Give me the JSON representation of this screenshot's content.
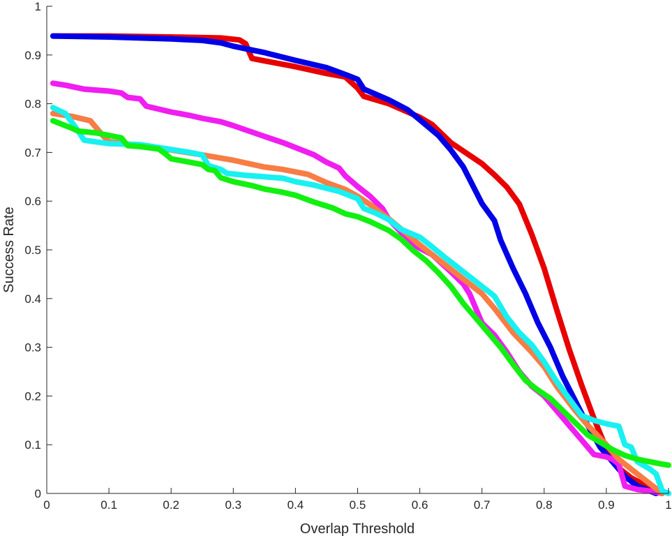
{
  "chart_data": {
    "type": "line",
    "title": "",
    "xlabel": "Overlap Threshold",
    "ylabel": "Success Rate",
    "xlim": [
      0,
      1
    ],
    "ylim": [
      0,
      1
    ],
    "grid": false,
    "legend": "none",
    "x_ticks": [
      "0",
      "0.1",
      "0.2",
      "0.3",
      "0.4",
      "0.5",
      "0.6",
      "0.7",
      "0.8",
      "0.9",
      "1"
    ],
    "y_ticks": [
      "0",
      "0.1",
      "0.2",
      "0.3",
      "0.4",
      "0.5",
      "0.6",
      "0.7",
      "0.8",
      "0.9",
      "1"
    ],
    "series": [
      {
        "color": "#e80000",
        "points": [
          [
            0.01,
            0.939
          ],
          [
            0.1,
            0.939
          ],
          [
            0.2,
            0.937
          ],
          [
            0.28,
            0.935
          ],
          [
            0.31,
            0.931
          ],
          [
            0.32,
            0.923
          ],
          [
            0.33,
            0.893
          ],
          [
            0.35,
            0.888
          ],
          [
            0.4,
            0.876
          ],
          [
            0.45,
            0.862
          ],
          [
            0.48,
            0.855
          ],
          [
            0.5,
            0.832
          ],
          [
            0.51,
            0.815
          ],
          [
            0.55,
            0.8
          ],
          [
            0.6,
            0.772
          ],
          [
            0.62,
            0.757
          ],
          [
            0.65,
            0.72
          ],
          [
            0.7,
            0.677
          ],
          [
            0.72,
            0.654
          ],
          [
            0.74,
            0.629
          ],
          [
            0.76,
            0.594
          ],
          [
            0.78,
            0.532
          ],
          [
            0.8,
            0.462
          ],
          [
            0.82,
            0.378
          ],
          [
            0.84,
            0.297
          ],
          [
            0.86,
            0.223
          ],
          [
            0.88,
            0.154
          ],
          [
            0.9,
            0.092
          ],
          [
            0.92,
            0.052
          ],
          [
            0.94,
            0.032
          ],
          [
            0.96,
            0.018
          ],
          [
            0.98,
            0.004
          ],
          [
            0.99,
            0.0
          ]
        ]
      },
      {
        "color": "#0000e6",
        "points": [
          [
            0.01,
            0.939
          ],
          [
            0.1,
            0.937
          ],
          [
            0.2,
            0.933
          ],
          [
            0.25,
            0.93
          ],
          [
            0.28,
            0.925
          ],
          [
            0.3,
            0.918
          ],
          [
            0.35,
            0.905
          ],
          [
            0.4,
            0.889
          ],
          [
            0.45,
            0.874
          ],
          [
            0.48,
            0.86
          ],
          [
            0.5,
            0.85
          ],
          [
            0.51,
            0.83
          ],
          [
            0.55,
            0.808
          ],
          [
            0.58,
            0.788
          ],
          [
            0.6,
            0.767
          ],
          [
            0.63,
            0.735
          ],
          [
            0.65,
            0.705
          ],
          [
            0.67,
            0.67
          ],
          [
            0.69,
            0.62
          ],
          [
            0.7,
            0.595
          ],
          [
            0.72,
            0.56
          ],
          [
            0.73,
            0.52
          ],
          [
            0.75,
            0.462
          ],
          [
            0.77,
            0.41
          ],
          [
            0.79,
            0.35
          ],
          [
            0.81,
            0.3
          ],
          [
            0.83,
            0.24
          ],
          [
            0.85,
            0.19
          ],
          [
            0.87,
            0.14
          ],
          [
            0.89,
            0.095
          ],
          [
            0.91,
            0.065
          ],
          [
            0.93,
            0.035
          ],
          [
            0.95,
            0.015
          ],
          [
            0.97,
            0.005
          ],
          [
            0.98,
            0.0
          ]
        ]
      },
      {
        "color": "#f01ef0",
        "points": [
          [
            0.01,
            0.842
          ],
          [
            0.03,
            0.838
          ],
          [
            0.06,
            0.83
          ],
          [
            0.1,
            0.826
          ],
          [
            0.12,
            0.822
          ],
          [
            0.13,
            0.813
          ],
          [
            0.15,
            0.81
          ],
          [
            0.16,
            0.795
          ],
          [
            0.2,
            0.783
          ],
          [
            0.23,
            0.776
          ],
          [
            0.25,
            0.77
          ],
          [
            0.28,
            0.763
          ],
          [
            0.3,
            0.755
          ],
          [
            0.35,
            0.733
          ],
          [
            0.38,
            0.72
          ],
          [
            0.4,
            0.71
          ],
          [
            0.43,
            0.695
          ],
          [
            0.45,
            0.68
          ],
          [
            0.47,
            0.668
          ],
          [
            0.48,
            0.652
          ],
          [
            0.5,
            0.63
          ],
          [
            0.52,
            0.61
          ],
          [
            0.54,
            0.585
          ],
          [
            0.55,
            0.563
          ],
          [
            0.57,
            0.536
          ],
          [
            0.59,
            0.51
          ],
          [
            0.62,
            0.49
          ],
          [
            0.65,
            0.455
          ],
          [
            0.67,
            0.43
          ],
          [
            0.68,
            0.41
          ],
          [
            0.7,
            0.35
          ],
          [
            0.72,
            0.325
          ],
          [
            0.74,
            0.29
          ],
          [
            0.76,
            0.25
          ],
          [
            0.78,
            0.22
          ],
          [
            0.8,
            0.2
          ],
          [
            0.82,
            0.17
          ],
          [
            0.84,
            0.14
          ],
          [
            0.86,
            0.11
          ],
          [
            0.88,
            0.08
          ],
          [
            0.9,
            0.075
          ],
          [
            0.91,
            0.07
          ],
          [
            0.92,
            0.06
          ],
          [
            0.93,
            0.015
          ],
          [
            0.95,
            0.008
          ],
          [
            0.97,
            0.005
          ],
          [
            0.99,
            0.0
          ]
        ]
      },
      {
        "color": "#f77d45",
        "points": [
          [
            0.01,
            0.78
          ],
          [
            0.04,
            0.774
          ],
          [
            0.07,
            0.765
          ],
          [
            0.09,
            0.735
          ],
          [
            0.1,
            0.722
          ],
          [
            0.15,
            0.714
          ],
          [
            0.2,
            0.705
          ],
          [
            0.25,
            0.695
          ],
          [
            0.3,
            0.684
          ],
          [
            0.35,
            0.67
          ],
          [
            0.38,
            0.665
          ],
          [
            0.42,
            0.655
          ],
          [
            0.45,
            0.638
          ],
          [
            0.48,
            0.624
          ],
          [
            0.5,
            0.61
          ],
          [
            0.52,
            0.593
          ],
          [
            0.55,
            0.564
          ],
          [
            0.58,
            0.532
          ],
          [
            0.6,
            0.51
          ],
          [
            0.63,
            0.48
          ],
          [
            0.66,
            0.45
          ],
          [
            0.7,
            0.41
          ],
          [
            0.72,
            0.38
          ],
          [
            0.75,
            0.33
          ],
          [
            0.78,
            0.29
          ],
          [
            0.8,
            0.26
          ],
          [
            0.82,
            0.22
          ],
          [
            0.85,
            0.17
          ],
          [
            0.87,
            0.14
          ],
          [
            0.9,
            0.1
          ],
          [
            0.92,
            0.07
          ],
          [
            0.95,
            0.04
          ],
          [
            0.98,
            0.01
          ],
          [
            0.99,
            0.0
          ]
        ]
      },
      {
        "color": "#19f0f0",
        "points": [
          [
            0.01,
            0.792
          ],
          [
            0.03,
            0.78
          ],
          [
            0.05,
            0.745
          ],
          [
            0.06,
            0.725
          ],
          [
            0.1,
            0.718
          ],
          [
            0.15,
            0.716
          ],
          [
            0.2,
            0.706
          ],
          [
            0.23,
            0.7
          ],
          [
            0.25,
            0.695
          ],
          [
            0.26,
            0.673
          ],
          [
            0.28,
            0.665
          ],
          [
            0.29,
            0.657
          ],
          [
            0.32,
            0.653
          ],
          [
            0.38,
            0.647
          ],
          [
            0.4,
            0.64
          ],
          [
            0.43,
            0.633
          ],
          [
            0.47,
            0.62
          ],
          [
            0.5,
            0.605
          ],
          [
            0.51,
            0.585
          ],
          [
            0.53,
            0.575
          ],
          [
            0.55,
            0.562
          ],
          [
            0.57,
            0.542
          ],
          [
            0.6,
            0.526
          ],
          [
            0.62,
            0.506
          ],
          [
            0.64,
            0.485
          ],
          [
            0.66,
            0.465
          ],
          [
            0.68,
            0.445
          ],
          [
            0.7,
            0.425
          ],
          [
            0.72,
            0.405
          ],
          [
            0.74,
            0.362
          ],
          [
            0.76,
            0.33
          ],
          [
            0.78,
            0.305
          ],
          [
            0.8,
            0.27
          ],
          [
            0.82,
            0.23
          ],
          [
            0.84,
            0.195
          ],
          [
            0.86,
            0.16
          ],
          [
            0.88,
            0.15
          ],
          [
            0.9,
            0.143
          ],
          [
            0.92,
            0.138
          ],
          [
            0.93,
            0.1
          ],
          [
            0.94,
            0.095
          ],
          [
            0.95,
            0.065
          ],
          [
            0.97,
            0.05
          ],
          [
            0.98,
            0.04
          ],
          [
            0.99,
            0.005
          ],
          [
            1.0,
            0.0
          ]
        ]
      },
      {
        "color": "#12f012",
        "points": [
          [
            0.01,
            0.765
          ],
          [
            0.04,
            0.75
          ],
          [
            0.05,
            0.744
          ],
          [
            0.08,
            0.74
          ],
          [
            0.12,
            0.73
          ],
          [
            0.13,
            0.714
          ],
          [
            0.15,
            0.712
          ],
          [
            0.18,
            0.707
          ],
          [
            0.19,
            0.698
          ],
          [
            0.2,
            0.687
          ],
          [
            0.23,
            0.68
          ],
          [
            0.25,
            0.675
          ],
          [
            0.26,
            0.665
          ],
          [
            0.27,
            0.663
          ],
          [
            0.28,
            0.648
          ],
          [
            0.3,
            0.64
          ],
          [
            0.33,
            0.632
          ],
          [
            0.35,
            0.625
          ],
          [
            0.38,
            0.618
          ],
          [
            0.4,
            0.612
          ],
          [
            0.43,
            0.598
          ],
          [
            0.46,
            0.586
          ],
          [
            0.48,
            0.574
          ],
          [
            0.5,
            0.568
          ],
          [
            0.52,
            0.558
          ],
          [
            0.55,
            0.54
          ],
          [
            0.57,
            0.522
          ],
          [
            0.59,
            0.498
          ],
          [
            0.61,
            0.478
          ],
          [
            0.63,
            0.453
          ],
          [
            0.65,
            0.425
          ],
          [
            0.67,
            0.39
          ],
          [
            0.69,
            0.36
          ],
          [
            0.71,
            0.33
          ],
          [
            0.73,
            0.3
          ],
          [
            0.75,
            0.265
          ],
          [
            0.77,
            0.232
          ],
          [
            0.79,
            0.212
          ],
          [
            0.81,
            0.195
          ],
          [
            0.83,
            0.17
          ],
          [
            0.85,
            0.145
          ],
          [
            0.87,
            0.12
          ],
          [
            0.89,
            0.105
          ],
          [
            0.91,
            0.09
          ],
          [
            0.93,
            0.078
          ],
          [
            0.95,
            0.07
          ],
          [
            0.97,
            0.065
          ],
          [
            0.99,
            0.06
          ],
          [
            1.0,
            0.058
          ]
        ]
      }
    ]
  }
}
